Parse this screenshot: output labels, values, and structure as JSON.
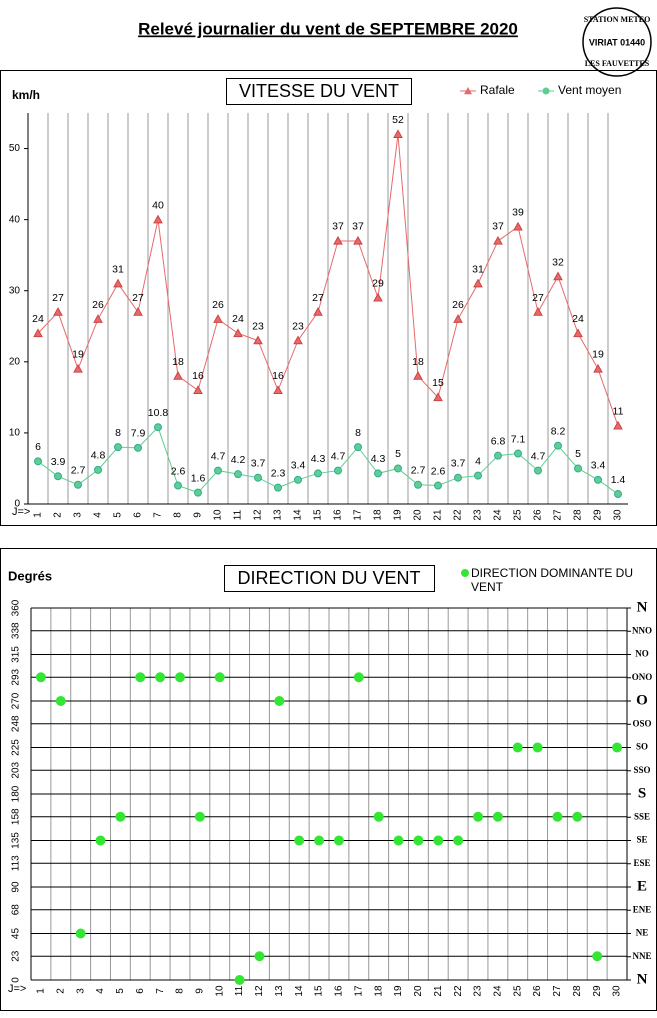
{
  "page_title": "Relevé journalier du vent de SEPTEMBRE 2020",
  "stamp": [
    "STATION METEO",
    "VIRIAT 01440",
    "LES FAUVETTES"
  ],
  "chart_data": [
    {
      "type": "line",
      "title": "VITESSE DU VENT",
      "y_label": "km/h",
      "x_label": "J=>",
      "categories": [
        "1",
        "2",
        "3",
        "4",
        "5",
        "6",
        "7",
        "8",
        "9",
        "10",
        "11",
        "12",
        "13",
        "14",
        "15",
        "16",
        "17",
        "18",
        "19",
        "20",
        "21",
        "22",
        "23",
        "24",
        "25",
        "26",
        "27",
        "28",
        "29",
        "30"
      ],
      "series": [
        {
          "name": "Rafale",
          "color": "#e8696b",
          "marker": "triangle",
          "values": [
            24,
            27,
            19,
            26,
            31,
            27,
            40,
            18,
            16,
            26,
            24,
            23,
            16,
            23,
            27,
            37,
            37,
            29,
            52,
            18,
            15,
            26,
            31,
            37,
            39,
            27,
            32,
            24,
            19,
            11
          ]
        },
        {
          "name": "Vent moyen",
          "color": "#5fce8f",
          "marker": "circle",
          "values": [
            6,
            3.9,
            2.7,
            4.8,
            8,
            7.9,
            10.8,
            2.6,
            1.6,
            4.7,
            4.2,
            3.7,
            2.3,
            3.4,
            4.3,
            4.7,
            8,
            4.3,
            5,
            2.7,
            2.6,
            3.7,
            4,
            6.8,
            7.1,
            4.7,
            8.2,
            5,
            3.4,
            1.4
          ]
        }
      ],
      "ylim": [
        0,
        55
      ],
      "yticks": [
        0,
        10,
        20,
        30,
        40,
        50
      ],
      "grid": "vertical",
      "legend": "top-right"
    },
    {
      "type": "scatter",
      "title": "DIRECTION DU VENT",
      "y_label": "Degrés",
      "x_label": "J=>",
      "categories": [
        "1",
        "2",
        "3",
        "4",
        "5",
        "6",
        "7",
        "8",
        "9",
        "10",
        "11",
        "12",
        "13",
        "14",
        "15",
        "16",
        "17",
        "18",
        "19",
        "20",
        "21",
        "22",
        "23",
        "24",
        "25",
        "26",
        "27",
        "28",
        "29",
        "30"
      ],
      "series": [
        {
          "name": "DIRECTION DOMINANTE DU VENT",
          "color": "#33e633",
          "values": [
            293,
            270,
            45,
            135,
            158,
            293,
            293,
            293,
            158,
            293,
            0,
            23,
            270,
            135,
            135,
            135,
            293,
            158,
            135,
            135,
            135,
            135,
            158,
            158,
            225,
            225,
            158,
            158,
            23,
            225
          ]
        }
      ],
      "ylim": [
        0,
        360
      ],
      "yticks": [
        0,
        23,
        45,
        68,
        90,
        113,
        135,
        158,
        180,
        203,
        225,
        248,
        270,
        293,
        315,
        338,
        360
      ],
      "y2lim": [
        0,
        360
      ],
      "y2ticks": [
        {
          "value": 0,
          "label": "N"
        },
        {
          "value": 22.5,
          "label": "NNE"
        },
        {
          "value": 45,
          "label": "NE"
        },
        {
          "value": 67.5,
          "label": "ENE"
        },
        {
          "value": 90,
          "label": "E"
        },
        {
          "value": 112.5,
          "label": "ESE"
        },
        {
          "value": 135,
          "label": "SE"
        },
        {
          "value": 157.5,
          "label": "SSE"
        },
        {
          "value": 180,
          "label": "S"
        },
        {
          "value": 202.5,
          "label": "SSO"
        },
        {
          "value": 225,
          "label": "SO"
        },
        {
          "value": 247.5,
          "label": "OSO"
        },
        {
          "value": 270,
          "label": "O"
        },
        {
          "value": 292.5,
          "label": "ONO"
        },
        {
          "value": 315,
          "label": "NO"
        },
        {
          "value": 337.5,
          "label": "NNO"
        },
        {
          "value": 360,
          "label": "N"
        }
      ],
      "grid": "both",
      "legend": "top-right"
    }
  ]
}
